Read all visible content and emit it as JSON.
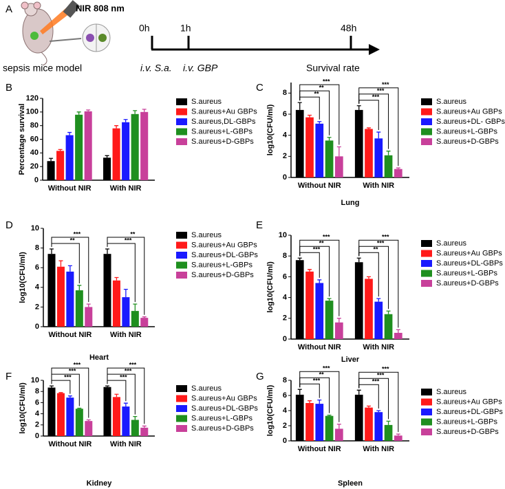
{
  "schematic": {
    "panel": "A",
    "laser": "NIR 808 nm",
    "model": "sepsis mice model",
    "times": [
      "0h",
      "1h",
      "48h"
    ],
    "events": [
      "i.v. S.a.",
      "i.v. GBP",
      "Survival rate"
    ]
  },
  "chart_data": [
    {
      "type": "bar",
      "panel": "B",
      "y_label": "Percentage survival",
      "categories": [
        "Without NIR",
        "With NIR"
      ],
      "ylim": [
        0,
        120
      ],
      "yticks": [
        0,
        20,
        40,
        60,
        80,
        100,
        120
      ],
      "series": [
        {
          "name": "S.aureus",
          "color": "#000000",
          "values": [
            28,
            33
          ],
          "errors": [
            4,
            3
          ]
        },
        {
          "name": "S.aureus+Au GBPs",
          "color": "#ff1a1a",
          "values": [
            43,
            76
          ],
          "errors": [
            2,
            4
          ]
        },
        {
          "name": "S.aureus,DL-GBPs",
          "color": "#1a1aff",
          "values": [
            66,
            85
          ],
          "errors": [
            4,
            4
          ]
        },
        {
          "name": "S.aureus+L-GBPs",
          "color": "#1f8f1f",
          "values": [
            96,
            97
          ],
          "errors": [
            4,
            5
          ]
        },
        {
          "name": "S.aureus+D-GBPs",
          "color": "#c8409a",
          "values": [
            101,
            100
          ],
          "errors": [
            2,
            4
          ]
        }
      ]
    },
    {
      "type": "bar",
      "panel": "C",
      "x_label": "Lung",
      "y_label": "log10(CFU/ml)",
      "categories": [
        "Without NIR",
        "With NIR"
      ],
      "ylim": [
        0,
        9
      ],
      "yticks": [
        0,
        2,
        4,
        6,
        8
      ],
      "series": [
        {
          "name": "S.aureus",
          "color": "#000000",
          "values": [
            6.4,
            6.4
          ],
          "errors": [
            0.7,
            0.4
          ]
        },
        {
          "name": "S.aureus+Au GBPs",
          "color": "#ff1a1a",
          "values": [
            5.7,
            4.6
          ],
          "errors": [
            0.2,
            0.1
          ]
        },
        {
          "name": "S.aureus+DL- GBPs",
          "color": "#1a1aff",
          "values": [
            5.1,
            3.7
          ],
          "errors": [
            0.2,
            0.6
          ]
        },
        {
          "name": "S.aureus+L-GBPs",
          "color": "#1f8f1f",
          "values": [
            3.5,
            2.1
          ],
          "errors": [
            0.3,
            0.4
          ]
        },
        {
          "name": "S.aureus+D-GBPs",
          "color": "#c8409a",
          "values": [
            2.0,
            0.8
          ],
          "errors": [
            0.9,
            0.1
          ]
        }
      ],
      "significance": [
        [
          "***",
          "**",
          "**"
        ],
        [
          "***",
          "***",
          "***"
        ]
      ]
    },
    {
      "type": "bar",
      "panel": "D",
      "x_label": "Heart",
      "y_label": "log10(CFU/ml)",
      "categories": [
        "Without NIR",
        "With NIR"
      ],
      "ylim": [
        0,
        10
      ],
      "yticks": [
        0,
        2,
        4,
        6,
        8,
        10
      ],
      "series": [
        {
          "name": "S.aureus",
          "color": "#000000",
          "values": [
            7.4,
            7.4
          ],
          "errors": [
            0.5,
            0.5
          ]
        },
        {
          "name": "S.aureus+Au GBPs",
          "color": "#ff1a1a",
          "values": [
            6.1,
            4.7
          ],
          "errors": [
            0.6,
            0.3
          ]
        },
        {
          "name": "S.aureus+DL-GBPs",
          "color": "#1a1aff",
          "values": [
            5.6,
            3.0
          ],
          "errors": [
            0.6,
            0.8
          ]
        },
        {
          "name": "S.aureus+L-GBPs",
          "color": "#1f8f1f",
          "values": [
            3.7,
            1.6
          ],
          "errors": [
            0.5,
            0.7
          ]
        },
        {
          "name": "S.aureus+D-GBPs",
          "color": "#c8409a",
          "values": [
            2.0,
            0.9
          ],
          "errors": [
            0.3,
            0.1
          ]
        }
      ],
      "significance": [
        [
          "***",
          "**"
        ],
        [
          "**",
          "***"
        ]
      ]
    },
    {
      "type": "bar",
      "panel": "E",
      "x_label": "Liver",
      "y_label": "log10(CFU/ml)",
      "categories": [
        "Without NIR",
        "With NIR"
      ],
      "ylim": [
        0,
        10
      ],
      "yticks": [
        0,
        2,
        4,
        6,
        8,
        10
      ],
      "series": [
        {
          "name": "S.aureus",
          "color": "#000000",
          "values": [
            7.6,
            7.4
          ],
          "errors": [
            0.2,
            0.4
          ]
        },
        {
          "name": "S.aureus+Au GBPs",
          "color": "#ff1a1a",
          "values": [
            6.5,
            5.8
          ],
          "errors": [
            0.2,
            0.2
          ]
        },
        {
          "name": "S.aureus+DL-GBPs",
          "color": "#1a1aff",
          "values": [
            5.4,
            3.6
          ],
          "errors": [
            0.3,
            0.3
          ]
        },
        {
          "name": "S.aureus+L-GBPs",
          "color": "#1f8f1f",
          "values": [
            3.7,
            2.4
          ],
          "errors": [
            0.2,
            0.3
          ]
        },
        {
          "name": "S.aureus+D-GBPs",
          "color": "#c8409a",
          "values": [
            1.6,
            0.6
          ],
          "errors": [
            0.4,
            0.3
          ]
        }
      ],
      "significance": [
        [
          "***",
          "**",
          "***"
        ],
        [
          "***",
          "***",
          "**"
        ]
      ]
    },
    {
      "type": "bar",
      "panel": "F",
      "x_label": "Kidney",
      "y_label": "log10(CFU/ml)",
      "categories": [
        "Without NIR",
        "With NIR"
      ],
      "ylim": [
        0,
        10
      ],
      "yticks": [
        0,
        2,
        4,
        6,
        8,
        10
      ],
      "series": [
        {
          "name": "S.aureus",
          "color": "#000000",
          "values": [
            8.7,
            8.8
          ],
          "errors": [
            0.3,
            0.2
          ]
        },
        {
          "name": "S.aureus+Au GBPs",
          "color": "#ff1a1a",
          "values": [
            7.7,
            7.0
          ],
          "errors": [
            0.1,
            0.5
          ]
        },
        {
          "name": "S.aureus+DL-GBPs",
          "color": "#1a1aff",
          "values": [
            6.9,
            5.3
          ],
          "errors": [
            0.3,
            0.6
          ]
        },
        {
          "name": "S.aureus+L-GBPs",
          "color": "#1f8f1f",
          "values": [
            4.9,
            2.9
          ],
          "errors": [
            0.1,
            0.6
          ]
        },
        {
          "name": "S.aureus+D-GBPs",
          "color": "#c8409a",
          "values": [
            2.7,
            1.5
          ],
          "errors": [
            0.2,
            0.3
          ]
        }
      ],
      "significance": [
        [
          "***",
          "***",
          "***"
        ],
        [
          "***",
          "***",
          "***"
        ]
      ]
    },
    {
      "type": "bar",
      "panel": "G",
      "x_label": "Spleen",
      "y_label": "log10(CFU/ml)",
      "categories": [
        "Without NIR",
        "With NIR"
      ],
      "ylim": [
        0,
        8
      ],
      "yticks": [
        0,
        2,
        4,
        6,
        8
      ],
      "series": [
        {
          "name": "S.aureus",
          "color": "#000000",
          "values": [
            6.1,
            6.1
          ],
          "errors": [
            0.7,
            0.6
          ]
        },
        {
          "name": "S.aureus+Au GBPs",
          "color": "#ff1a1a",
          "values": [
            5.0,
            4.4
          ],
          "errors": [
            0.3,
            0.2
          ]
        },
        {
          "name": "S.aureus+DL-GBPs",
          "color": "#1a1aff",
          "values": [
            4.9,
            3.8
          ],
          "errors": [
            0.5,
            0.2
          ]
        },
        {
          "name": "S.aureus+L-GBPs",
          "color": "#1f8f1f",
          "values": [
            3.3,
            2.1
          ],
          "errors": [
            0.1,
            0.5
          ]
        },
        {
          "name": "S.aureus+D-GBPs",
          "color": "#c8409a",
          "values": [
            1.6,
            0.7
          ],
          "errors": [
            0.6,
            0.2
          ]
        }
      ],
      "significance": [
        [
          "***",
          "**",
          "***"
        ],
        [
          "***",
          "***",
          "***"
        ]
      ]
    }
  ]
}
